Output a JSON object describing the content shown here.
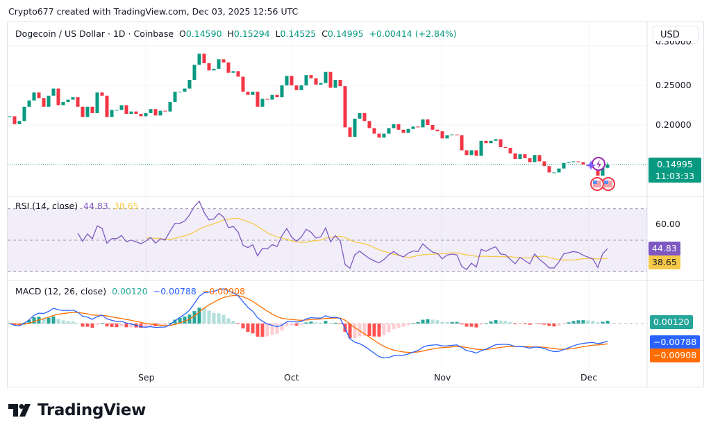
{
  "credit": "Crypto677 created with TradingView.com, Dec 03, 2025 12:56 UTC",
  "legend": {
    "symbol": "Dogecoin / US Dollar · 1D · Coinbase",
    "open_label": "O",
    "open": "0.14590",
    "high_label": "H",
    "high": "0.15294",
    "low_label": "L",
    "low": "0.14525",
    "close_label": "C",
    "close": "0.14995",
    "change": "+0.00414 (+2.84%)"
  },
  "currency": "USD",
  "price_axis": {
    "ticks": [
      "0.30000",
      "0.25000",
      "0.20000"
    ]
  },
  "last_price": {
    "value": "0.14995",
    "countdown": "11:03:33"
  },
  "rsi": {
    "title": "RSI (14, close)",
    "value": "44.83",
    "ma_value": "38.65",
    "axis_tick": "60.00"
  },
  "macd": {
    "title": "MACD (12, 26, close)",
    "hist": "0.00120",
    "macd": "−0.00788",
    "signal": "−0.00908"
  },
  "time_axis": [
    "Sep",
    "Oct",
    "Nov",
    "Dec"
  ],
  "logo": "TradingView",
  "colors": {
    "up": "#089981",
    "down": "#F23645",
    "rsi": "#7E57C2",
    "rsi_ma": "#F7C948",
    "macd": "#2962FF",
    "signal": "#FF6D00"
  },
  "chart_data": {
    "type": "candlestick",
    "symbol": "DOGE/USD",
    "interval": "1D",
    "x_start": "2025-08-04",
    "x_end": "2025-12-03",
    "ylim": [
      0.13,
      0.3
    ],
    "close": [
      0.211,
      0.201,
      0.205,
      0.223,
      0.231,
      0.241,
      0.234,
      0.223,
      0.237,
      0.246,
      0.225,
      0.229,
      0.232,
      0.235,
      0.223,
      0.21,
      0.223,
      0.215,
      0.241,
      0.237,
      0.21,
      0.219,
      0.219,
      0.225,
      0.214,
      0.217,
      0.214,
      0.211,
      0.215,
      0.22,
      0.212,
      0.218,
      0.217,
      0.229,
      0.242,
      0.242,
      0.246,
      0.257,
      0.276,
      0.29,
      0.278,
      0.269,
      0.271,
      0.283,
      0.279,
      0.266,
      0.268,
      0.261,
      0.242,
      0.238,
      0.242,
      0.223,
      0.233,
      0.232,
      0.238,
      0.235,
      0.25,
      0.262,
      0.25,
      0.244,
      0.25,
      0.263,
      0.259,
      0.251,
      0.253,
      0.267,
      0.247,
      0.257,
      0.249,
      0.197,
      0.185,
      0.208,
      0.215,
      0.205,
      0.196,
      0.189,
      0.184,
      0.189,
      0.196,
      0.201,
      0.194,
      0.19,
      0.195,
      0.198,
      0.197,
      0.207,
      0.2,
      0.194,
      0.192,
      0.183,
      0.187,
      0.188,
      0.187,
      0.168,
      0.162,
      0.168,
      0.161,
      0.18,
      0.177,
      0.18,
      0.182,
      0.172,
      0.171,
      0.164,
      0.157,
      0.163,
      0.158,
      0.153,
      0.162,
      0.154,
      0.148,
      0.14,
      0.14,
      0.145,
      0.152,
      0.153,
      0.154,
      0.153,
      0.15,
      0.148,
      0.146,
      0.136,
      0.1458,
      0.14995
    ],
    "last_candle": {
      "open": 0.1459,
      "high": 0.15294,
      "low": 0.14525,
      "close": 0.14995
    },
    "indicators": {
      "rsi": {
        "period": 14,
        "value": 44.83,
        "ma": 38.65,
        "bands": [
          30,
          50,
          70
        ]
      },
      "macd": {
        "fast": 12,
        "slow": 26,
        "histogram": 0.0012,
        "macd": -0.00788,
        "signal": -0.00908
      }
    }
  }
}
